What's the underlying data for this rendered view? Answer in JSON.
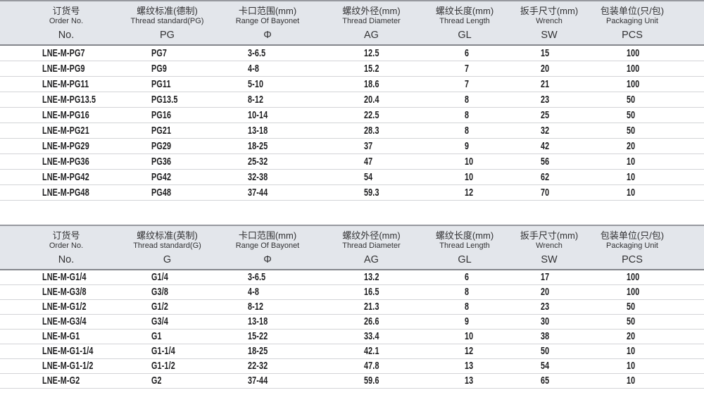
{
  "colors": {
    "header_bg": "#e3e6eb",
    "header_border_top": "#97999f",
    "header_border_bottom": "#84868c",
    "row_separator": "#d3d4d7",
    "header_text": "#323234",
    "data_text": "#1d1d1f"
  },
  "tables": [
    {
      "name": "pg-thread-standard-table",
      "columns": [
        {
          "cn": "订货号",
          "en": "Order No.",
          "code": "No."
        },
        {
          "cn": "螺纹标准(德制)",
          "en": "Thread standard(PG)",
          "code": "PG"
        },
        {
          "cn": "卡口范围(mm)",
          "en": "Range Of Bayonet",
          "code": "Φ"
        },
        {
          "cn": "螺纹外径(mm)",
          "en": "Thread Diameter",
          "code": "AG"
        },
        {
          "cn": "螺纹长度(mm)",
          "en": "Thread Length",
          "code": "GL"
        },
        {
          "cn": "扳手尺寸(mm)",
          "en": "Wrench",
          "code": "SW"
        },
        {
          "cn": "包装单位(只/包)",
          "en": "Packaging Unit",
          "code": "PCS"
        }
      ],
      "rows": [
        [
          "LNE-M-PG7",
          "PG7",
          "3-6.5",
          "12.5",
          "6",
          "15",
          "100"
        ],
        [
          "LNE-M-PG9",
          "PG9",
          "4-8",
          "15.2",
          "7",
          "20",
          "100"
        ],
        [
          "LNE-M-PG11",
          "PG11",
          "5-10",
          "18.6",
          "7",
          "21",
          "100"
        ],
        [
          "LNE-M-PG13.5",
          "PG13.5",
          "8-12",
          "20.4",
          "8",
          "23",
          "50"
        ],
        [
          "LNE-M-PG16",
          "PG16",
          "10-14",
          "22.5",
          "8",
          "25",
          "50"
        ],
        [
          "LNE-M-PG21",
          "PG21",
          "13-18",
          "28.3",
          "8",
          "32",
          "50"
        ],
        [
          "LNE-M-PG29",
          "PG29",
          "18-25",
          "37",
          "9",
          "42",
          "20"
        ],
        [
          "LNE-M-PG36",
          "PG36",
          "25-32",
          "47",
          "10",
          "56",
          "10"
        ],
        [
          "LNE-M-PG42",
          "PG42",
          "32-38",
          "54",
          "10",
          "62",
          "10"
        ],
        [
          "LNE-M-PG48",
          "PG48",
          "37-44",
          "59.3",
          "12",
          "70",
          "10"
        ]
      ]
    },
    {
      "name": "g-thread-standard-table",
      "columns": [
        {
          "cn": "订货号",
          "en": "Order No.",
          "code": "No."
        },
        {
          "cn": "螺纹标准(英制)",
          "en": "Thread standard(G)",
          "code": "G"
        },
        {
          "cn": "卡口范围(mm)",
          "en": "Range Of Bayonet",
          "code": "Φ"
        },
        {
          "cn": "螺纹外径(mm)",
          "en": "Thread Diameter",
          "code": "AG"
        },
        {
          "cn": "螺纹长度(mm)",
          "en": "Thread Length",
          "code": "GL"
        },
        {
          "cn": "扳手尺寸(mm)",
          "en": "Wrench",
          "code": "SW"
        },
        {
          "cn": "包装单位(只/包)",
          "en": "Packaging Unit",
          "code": "PCS"
        }
      ],
      "rows": [
        [
          "LNE-M-G1/4",
          "G1/4",
          "3-6.5",
          "13.2",
          "6",
          "17",
          "100"
        ],
        [
          "LNE-M-G3/8",
          "G3/8",
          "4-8",
          "16.5",
          "8",
          "20",
          "100"
        ],
        [
          "LNE-M-G1/2",
          "G1/2",
          "8-12",
          "21.3",
          "8",
          "23",
          "50"
        ],
        [
          "LNE-M-G3/4",
          "G3/4",
          "13-18",
          "26.6",
          "9",
          "30",
          "50"
        ],
        [
          "LNE-M-G1",
          "G1",
          "15-22",
          "33.4",
          "10",
          "38",
          "20"
        ],
        [
          "LNE-M-G1-1/4",
          "G1-1/4",
          "18-25",
          "42.1",
          "12",
          "50",
          "10"
        ],
        [
          "LNE-M-G1-1/2",
          "G1-1/2",
          "22-32",
          "47.8",
          "13",
          "54",
          "10"
        ],
        [
          "LNE-M-G2",
          "G2",
          "37-44",
          "59.6",
          "13",
          "65",
          "10"
        ]
      ]
    }
  ]
}
